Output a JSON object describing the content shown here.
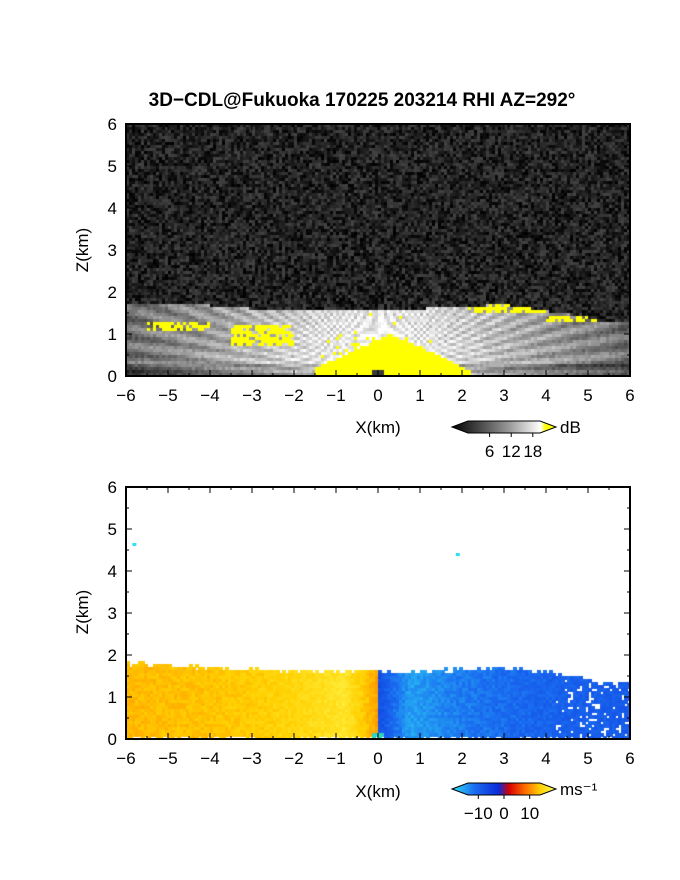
{
  "title": "3D−CDL@Fukuoka 170225 203214 RHI AZ=292°",
  "chart_data": [
    {
      "type": "heatmap",
      "panel": "top",
      "quantity": "signal-to-noise ratio",
      "xlabel": "X(km)",
      "ylabel": "Z(km)",
      "xlim": [
        -6,
        6
      ],
      "ylim": [
        0,
        6
      ],
      "xticks": [
        "−6",
        "−5",
        "−4",
        "−3",
        "−2",
        "−1",
        "0",
        "1",
        "2",
        "3",
        "4",
        "5",
        "6"
      ],
      "yticks": [
        "0",
        "1",
        "2",
        "3",
        "4",
        "5",
        "6"
      ],
      "colorbar": {
        "unit": "dB",
        "ticks": [
          "6",
          "12",
          "18"
        ],
        "range": [
          0,
          20
        ],
        "colors": [
          "#000000",
          "#ffffff",
          "#ffff00"
        ]
      },
      "noise_floor_dB": 3,
      "echo_top_profile_km": {
        "x": [
          -6,
          -5,
          -4,
          -3,
          -2,
          -1,
          0,
          1,
          2,
          3,
          4,
          5,
          5.4,
          6
        ],
        "z": [
          1.75,
          1.72,
          1.68,
          1.6,
          1.55,
          1.55,
          1.6,
          1.6,
          1.65,
          1.7,
          1.55,
          1.4,
          1.25,
          1.3
        ]
      },
      "saturated_region_km": {
        "x_range": [
          -1.5,
          2.2
        ],
        "z_top": 1.0
      },
      "yellow_patches": [
        {
          "x": [
            2.0,
            4.0
          ],
          "z": [
            1.5,
            1.7
          ]
        },
        {
          "x": [
            4.0,
            5.6
          ],
          "z": [
            1.25,
            1.4
          ]
        },
        {
          "x": [
            -5.5,
            -4.0
          ],
          "z": [
            1.1,
            1.3
          ]
        },
        {
          "x": [
            -3.5,
            -2.0
          ],
          "z": [
            0.7,
            1.2
          ]
        }
      ]
    },
    {
      "type": "heatmap",
      "panel": "bottom",
      "quantity": "radial velocity",
      "xlabel": "X(km)",
      "ylabel": "Z(km)",
      "xlim": [
        -6,
        6
      ],
      "ylim": [
        0,
        6
      ],
      "xticks": [
        "−6",
        "−5",
        "−4",
        "−3",
        "−2",
        "−1",
        "0",
        "1",
        "2",
        "3",
        "4",
        "5",
        "6"
      ],
      "yticks": [
        "0",
        "1",
        "2",
        "3",
        "4",
        "5",
        "6"
      ],
      "colorbar": {
        "unit": "ms⁻¹",
        "ticks": [
          "−10",
          "0",
          "10"
        ],
        "range": [
          -14,
          14
        ],
        "colors": [
          "#2fe0f5",
          "#1a6cf0",
          "#0a2ad8",
          "#d80000",
          "#ff6a00",
          "#ffd000",
          "#ffff60"
        ]
      },
      "echo_top_profile_km": {
        "x": [
          -6,
          -5,
          -4,
          -3,
          -2,
          -1,
          0,
          1,
          2,
          3,
          4,
          5,
          5.4,
          6
        ],
        "z": [
          1.8,
          1.75,
          1.7,
          1.65,
          1.6,
          1.6,
          1.6,
          1.6,
          1.65,
          1.7,
          1.6,
          1.45,
          1.3,
          1.4
        ]
      },
      "velocity_model": {
        "near_peak_ms": 13,
        "far_ms": 8,
        "decay_km": 2.2
      },
      "outliers": [
        {
          "x": -5.8,
          "z": 4.62,
          "value": -14
        },
        {
          "x": 1.9,
          "z": 4.38,
          "value": -14
        }
      ]
    }
  ]
}
